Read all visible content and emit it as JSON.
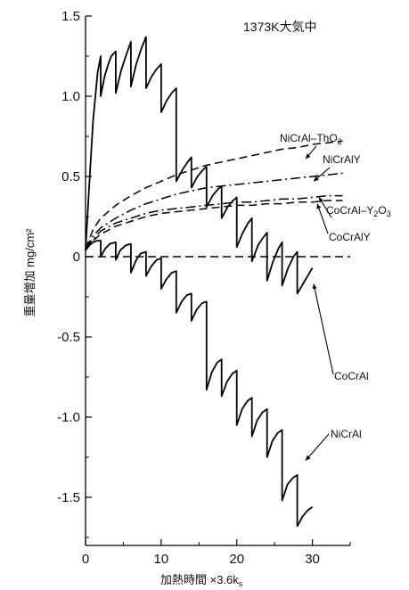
{
  "chart_data": {
    "type": "line",
    "title": "1373K大気中",
    "xlabel": "加熱時間 ×3.6k",
    "xlabel_subscript": "s",
    "ylabel": "重量増加 mg/cm²",
    "xlim": [
      0,
      35
    ],
    "ylim": [
      -1.8,
      1.5
    ],
    "x_ticks": [
      0,
      10,
      20,
      30
    ],
    "y_ticks": [
      1.5,
      1.0,
      0.5,
      0,
      -0.5,
      -1.0,
      -1.5
    ],
    "y_tick_labels": [
      "1.5",
      "1.0",
      "0.5",
      "0",
      "-0.5",
      "-1.0",
      "-1.5"
    ],
    "grid": false,
    "series": [
      {
        "name": "NiCrAl–ThO",
        "name_subscript": "2",
        "style": "dashed",
        "x": [
          0,
          1,
          2,
          4,
          6,
          8,
          10,
          12,
          14,
          16,
          18,
          20,
          22,
          24,
          26,
          28,
          30,
          32,
          34
        ],
        "y": [
          0.05,
          0.17,
          0.24,
          0.32,
          0.38,
          0.43,
          0.47,
          0.51,
          0.54,
          0.57,
          0.59,
          0.61,
          0.63,
          0.65,
          0.67,
          0.68,
          0.7,
          0.71,
          0.72
        ]
      },
      {
        "name": "NiCrAlY",
        "style": "dash-dot",
        "x": [
          0,
          1,
          2,
          4,
          6,
          8,
          10,
          12,
          14,
          16,
          18,
          20,
          22,
          24,
          26,
          28,
          30,
          32,
          34
        ],
        "y": [
          0.05,
          0.13,
          0.18,
          0.24,
          0.29,
          0.33,
          0.36,
          0.39,
          0.41,
          0.43,
          0.44,
          0.45,
          0.46,
          0.47,
          0.48,
          0.49,
          0.5,
          0.51,
          0.52
        ]
      },
      {
        "name": "CoCrAl–Y",
        "name_subscript": "2",
        "name_suffix": "O",
        "name_suffix_subscript": "3",
        "style": "dash-dot",
        "x": [
          0,
          1,
          2,
          4,
          6,
          8,
          10,
          12,
          14,
          16,
          18,
          20,
          22,
          24,
          26,
          28,
          30,
          32,
          34
        ],
        "y": [
          0.05,
          0.11,
          0.16,
          0.21,
          0.24,
          0.27,
          0.29,
          0.3,
          0.31,
          0.32,
          0.33,
          0.34,
          0.34,
          0.35,
          0.36,
          0.36,
          0.37,
          0.38,
          0.38
        ]
      },
      {
        "name": "CoCrAlY",
        "style": "dashed",
        "x": [
          0,
          1,
          2,
          4,
          6,
          8,
          10,
          12,
          14,
          16,
          18,
          20,
          22,
          24,
          26,
          28,
          30,
          32,
          34
        ],
        "y": [
          0.04,
          0.1,
          0.14,
          0.19,
          0.22,
          0.25,
          0.27,
          0.28,
          0.29,
          0.3,
          0.31,
          0.32,
          0.32,
          0.33,
          0.33,
          0.34,
          0.34,
          0.35,
          0.35
        ]
      },
      {
        "name": "",
        "style": "dashed",
        "x": [
          0,
          35
        ],
        "y": [
          0,
          0
        ]
      },
      {
        "name": "CoCrAl",
        "style": "solid",
        "x": [
          0,
          0.5,
          1.0,
          1.6,
          2.0,
          2.0,
          2.5,
          3.0,
          3.4,
          4.0,
          4.0,
          4.7,
          5.4,
          6.0,
          6.0,
          6.7,
          7.4,
          8.0,
          8.0,
          8.7,
          9.4,
          10.0,
          10.0,
          10.7,
          11.4,
          12.0,
          12.0,
          12.8,
          13.5,
          14.0,
          14.0,
          14.8,
          15.5,
          16.0,
          16.0,
          16.8,
          17.5,
          18.0,
          18.0,
          18.8,
          19.5,
          20.0,
          20.0,
          20.8,
          21.5,
          22.0,
          22.0,
          22.8,
          23.5,
          24.0,
          24.0,
          24.8,
          25.5,
          26.0,
          26.0,
          26.8,
          27.5,
          28.0,
          28.0,
          29.0,
          30.0
        ],
        "y": [
          0.04,
          0.45,
          0.85,
          1.15,
          1.25,
          1.0,
          1.12,
          1.2,
          1.25,
          1.28,
          1.02,
          1.16,
          1.26,
          1.34,
          1.06,
          1.2,
          1.3,
          1.37,
          1.05,
          1.12,
          1.17,
          1.2,
          0.9,
          0.97,
          1.02,
          1.05,
          0.47,
          0.54,
          0.59,
          0.62,
          0.43,
          0.5,
          0.54,
          0.56,
          0.31,
          0.38,
          0.42,
          0.44,
          0.24,
          0.31,
          0.35,
          0.37,
          0.06,
          0.15,
          0.21,
          0.24,
          -0.03,
          0.07,
          0.12,
          0.15,
          -0.15,
          -0.03,
          0.05,
          0.09,
          -0.18,
          -0.07,
          0.0,
          0.03,
          -0.23,
          -0.15,
          -0.07
        ]
      },
      {
        "name": "NiCrAl",
        "style": "solid",
        "x": [
          0,
          0.5,
          1.0,
          1.6,
          2.0,
          2.0,
          2.6,
          3.2,
          4.0,
          4.0,
          4.6,
          5.3,
          6.0,
          6.0,
          6.7,
          7.3,
          8.0,
          8.0,
          8.7,
          9.4,
          10.0,
          10.0,
          10.7,
          11.4,
          12.0,
          12.0,
          12.7,
          13.4,
          14.0,
          14.0,
          14.7,
          15.4,
          16.0,
          16.0,
          16.7,
          17.4,
          18.0,
          18.0,
          18.7,
          19.4,
          20.0,
          20.0,
          20.7,
          21.4,
          22.0,
          22.0,
          22.7,
          23.4,
          24.0,
          24.0,
          24.7,
          25.4,
          26.0,
          26.0,
          26.7,
          27.4,
          28.0,
          28.0,
          28.7,
          29.4,
          30.0
        ],
        "y": [
          0.04,
          0.07,
          0.09,
          0.1,
          0.1,
          0.0,
          0.05,
          0.08,
          0.09,
          -0.02,
          0.04,
          0.07,
          0.08,
          -0.1,
          -0.02,
          0.02,
          0.03,
          -0.12,
          -0.06,
          -0.02,
          -0.01,
          -0.2,
          -0.14,
          -0.1,
          -0.09,
          -0.35,
          -0.28,
          -0.24,
          -0.23,
          -0.4,
          -0.33,
          -0.29,
          -0.28,
          -0.83,
          -0.72,
          -0.66,
          -0.64,
          -0.87,
          -0.78,
          -0.73,
          -0.71,
          -1.05,
          -0.95,
          -0.9,
          -0.88,
          -1.12,
          -1.02,
          -0.97,
          -0.95,
          -1.25,
          -1.15,
          -1.1,
          -1.08,
          -1.52,
          -1.42,
          -1.38,
          -1.36,
          -1.68,
          -1.62,
          -1.58,
          -1.56
        ]
      }
    ]
  }
}
